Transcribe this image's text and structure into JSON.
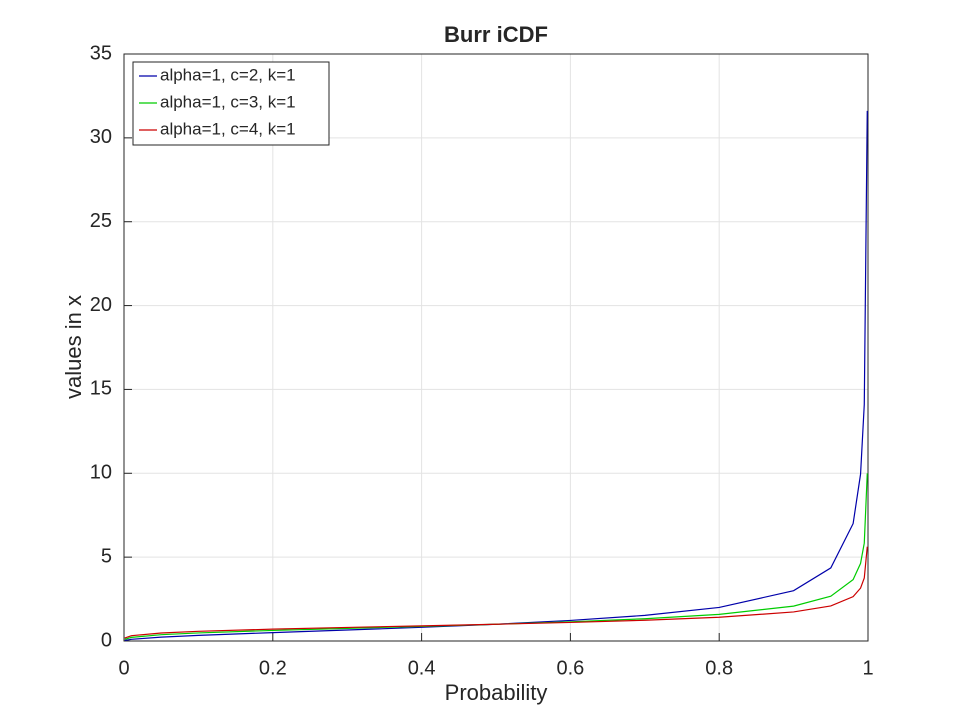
{
  "chart_data": {
    "type": "line",
    "title": "Burr iCDF",
    "xlabel": "Probability",
    "ylabel": "values in x",
    "x": [
      0.001,
      0.01,
      0.05,
      0.1,
      0.2,
      0.3,
      0.4,
      0.5,
      0.6,
      0.7,
      0.8,
      0.9,
      0.95,
      0.98,
      0.99,
      0.995,
      0.999
    ],
    "series": [
      {
        "name": "alpha=1, c=2, k=1",
        "color": "#0000aa",
        "values": [
          0.0316,
          0.1005,
          0.2294,
          0.3333,
          0.5,
          0.6547,
          0.8165,
          1,
          1.2247,
          1.5275,
          2,
          3,
          4.3589,
          7,
          9.9499,
          14.1067,
          31.607
        ]
      },
      {
        "name": "alpha=1, c=3, k=1",
        "color": "#00cc00",
        "values": [
          0.1,
          0.2162,
          0.3748,
          0.4807,
          0.63,
          0.7539,
          0.8736,
          1,
          1.1447,
          1.3264,
          1.5874,
          2.0801,
          2.6684,
          3.6593,
          4.6261,
          5.8383,
          9.9967
        ]
      },
      {
        "name": "alpha=1, c=4, k=1",
        "color": "#cc0000",
        "values": [
          0.1778,
          0.317,
          0.479,
          0.5774,
          0.7071,
          0.8091,
          0.9036,
          1,
          1.1067,
          1.2359,
          1.4142,
          1.7321,
          2.0878,
          2.6458,
          3.1543,
          3.7559,
          5.622
        ]
      }
    ],
    "xlim": [
      0,
      1
    ],
    "xticks": [
      0,
      0.2,
      0.4,
      0.6,
      0.8,
      1
    ],
    "ylim": [
      0,
      35
    ],
    "yticks": [
      0,
      5,
      10,
      15,
      20,
      25,
      30,
      35
    ],
    "grid": true,
    "legend": "top-left"
  }
}
